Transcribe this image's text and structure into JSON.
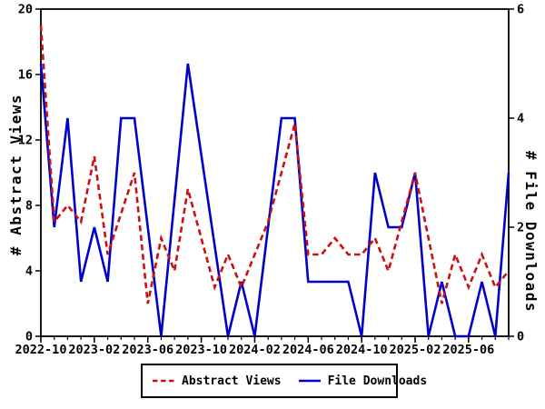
{
  "chart_data": {
    "type": "line",
    "title": "",
    "legend_position": "bottom-center",
    "background": "#ffffff",
    "axis_color": "#000000",
    "x_axis": {
      "start_month": "2022-10",
      "n_months": 36,
      "minor_tick_interval_months": 1,
      "major_tick_labels": [
        "2022-10",
        "2023-02",
        "2023-06",
        "2023-10",
        "2024-02",
        "2024-06",
        "2024-10",
        "2025-02",
        "2025-06"
      ]
    },
    "left_axis": {
      "label": "# Abstract Views",
      "range": [
        0,
        20
      ],
      "ticks": [
        0,
        4,
        8,
        12,
        16,
        20
      ]
    },
    "right_axis": {
      "label": "# File Downloads",
      "range": [
        0,
        6
      ],
      "ticks": [
        0,
        2,
        4,
        6
      ]
    },
    "series": [
      {
        "name": "File Downloads",
        "axis": "right",
        "color": "#0000cc",
        "line_style": "solid",
        "points": [
          [
            "2022-10",
            5
          ],
          [
            "2022-11",
            2
          ],
          [
            "2022-12",
            4
          ],
          [
            "2023-01",
            1
          ],
          [
            "2023-02",
            2
          ],
          [
            "2023-03",
            1
          ],
          [
            "2023-04",
            4
          ],
          [
            "2023-05",
            4
          ],
          [
            "2023-06",
            2
          ],
          [
            "2023-07",
            0
          ],
          [
            "2023-09",
            5
          ],
          [
            "2023-12",
            0
          ],
          [
            "2024-01",
            1
          ],
          [
            "2024-02",
            0
          ],
          [
            "2024-04",
            4
          ],
          [
            "2024-05",
            4
          ],
          [
            "2024-06",
            1
          ],
          [
            "2024-07",
            1
          ],
          [
            "2024-08",
            1
          ],
          [
            "2024-09",
            1
          ],
          [
            "2024-10",
            0
          ],
          [
            "2024-11",
            3
          ],
          [
            "2024-12",
            2
          ],
          [
            "2025-01",
            2
          ],
          [
            "2025-02",
            3
          ],
          [
            "2025-03",
            0
          ],
          [
            "2025-04",
            1
          ],
          [
            "2025-05",
            0
          ],
          [
            "2025-06",
            0
          ],
          [
            "2025-07",
            1
          ],
          [
            "2025-08",
            0
          ],
          [
            "2025-09",
            3
          ]
        ]
      },
      {
        "name": "Abstract Views",
        "axis": "left",
        "color": "#cc1111",
        "line_style": "dashed",
        "points": [
          [
            "2022-10",
            19
          ],
          [
            "2022-11",
            7
          ],
          [
            "2022-12",
            8
          ],
          [
            "2023-01",
            7
          ],
          [
            "2023-02",
            11
          ],
          [
            "2023-03",
            5
          ],
          [
            "2023-05",
            10
          ],
          [
            "2023-06",
            2
          ],
          [
            "2023-07",
            6
          ],
          [
            "2023-08",
            4
          ],
          [
            "2023-09",
            9
          ],
          [
            "2023-11",
            3
          ],
          [
            "2023-12",
            5
          ],
          [
            "2024-01",
            3
          ],
          [
            "2024-02",
            5
          ],
          [
            "2024-03",
            7
          ],
          [
            "2024-04",
            10
          ],
          [
            "2024-05",
            13
          ],
          [
            "2024-06",
            5
          ],
          [
            "2024-07",
            5
          ],
          [
            "2024-08",
            6
          ],
          [
            "2024-09",
            5
          ],
          [
            "2024-10",
            5
          ],
          [
            "2024-11",
            6
          ],
          [
            "2024-12",
            4
          ],
          [
            "2025-01",
            7
          ],
          [
            "2025-02",
            10
          ],
          [
            "2025-04",
            2
          ],
          [
            "2025-05",
            5
          ],
          [
            "2025-06",
            3
          ],
          [
            "2025-07",
            5
          ],
          [
            "2025-08",
            3
          ],
          [
            "2025-09",
            4
          ]
        ]
      }
    ]
  },
  "legend": {
    "abstract_views_label": "Abstract Views",
    "file_downloads_label": "File Downloads"
  }
}
